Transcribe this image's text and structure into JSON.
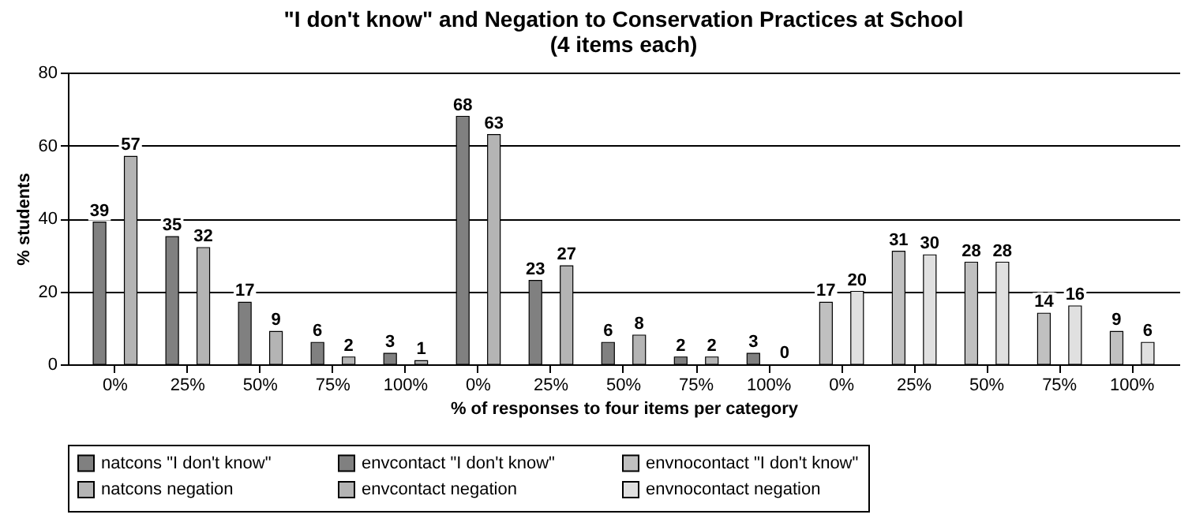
{
  "chart_data": {
    "type": "bar",
    "title": "\"I don't know\" and Negation to Conservation Practices at School",
    "subtitle": "(4 items each)",
    "xlabel": "% of responses to four items per category",
    "ylabel": "% students",
    "categories": [
      "0%",
      "25%",
      "50%",
      "75%",
      "100%",
      "0%",
      "25%",
      "50%",
      "75%",
      "100%",
      "0%",
      "25%",
      "50%",
      "75%",
      "100%"
    ],
    "series": [
      {
        "name": "natcons \"I don't know\"",
        "color": "#808080",
        "values": [
          39,
          35,
          17,
          6,
          3,
          null,
          null,
          null,
          null,
          null,
          null,
          null,
          null,
          null,
          null
        ]
      },
      {
        "name": "envcontact \"I don't know\"",
        "color": "#808080",
        "values": [
          null,
          null,
          null,
          null,
          null,
          68,
          23,
          6,
          2,
          3,
          null,
          null,
          null,
          null,
          null
        ]
      },
      {
        "name": "envnocontact \"I don't know\"",
        "color": "#c0c0c0",
        "values": [
          null,
          null,
          null,
          null,
          null,
          null,
          null,
          null,
          null,
          null,
          17,
          31,
          28,
          14,
          9
        ]
      },
      {
        "name": "natcons negation",
        "color": "#b4b4b4",
        "values": [
          57,
          32,
          9,
          2,
          1,
          null,
          null,
          null,
          null,
          null,
          null,
          null,
          null,
          null,
          null
        ]
      },
      {
        "name": "envcontact negation",
        "color": "#b4b4b4",
        "values": [
          null,
          null,
          null,
          null,
          null,
          63,
          27,
          8,
          2,
          0,
          null,
          null,
          null,
          null,
          null
        ]
      },
      {
        "name": "envnocontact negation",
        "color": "#e0e0e0",
        "values": [
          null,
          null,
          null,
          null,
          null,
          null,
          null,
          null,
          null,
          null,
          20,
          30,
          28,
          16,
          6
        ]
      }
    ],
    "ylim": [
      0,
      80
    ],
    "yticks": [
      0,
      20,
      40,
      60,
      80
    ],
    "grid": "y",
    "legend": "bottom",
    "data_labels": true
  }
}
